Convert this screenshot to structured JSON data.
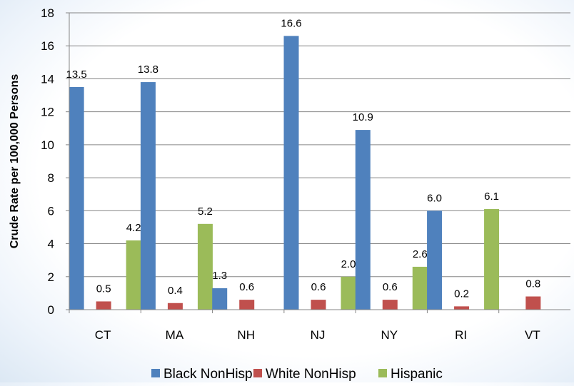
{
  "chart_data": {
    "type": "bar",
    "categories": [
      "CT",
      "MA",
      "NH",
      "NJ",
      "NY",
      "RI",
      "VT"
    ],
    "series": [
      {
        "name": "Black NonHisp",
        "values": [
          13.5,
          13.8,
          1.3,
          16.6,
          10.9,
          6.0,
          null
        ],
        "labels": [
          "13.5",
          "13.8",
          "1.3",
          "16.6",
          "10.9",
          "6.0",
          null
        ],
        "color": "#4f81bd"
      },
      {
        "name": "White NonHisp",
        "values": [
          0.5,
          0.4,
          0.6,
          0.6,
          0.6,
          0.2,
          0.8
        ],
        "labels": [
          "0.5",
          "0.4",
          "0.6",
          "0.6",
          "0.6",
          "0.2",
          "0.8"
        ],
        "color": "#c0504d"
      },
      {
        "name": "Hispanic",
        "values": [
          4.2,
          5.2,
          null,
          2.0,
          2.6,
          6.1,
          null
        ],
        "labels": [
          "4.2",
          "5.2",
          null,
          "2.0",
          "2.6",
          "6.1",
          null
        ],
        "color": "#9bbb59"
      }
    ],
    "ylabel": "Crude Rate per 100,000 Persons",
    "xlabel": "",
    "ylim": [
      0,
      18
    ],
    "yticks": [
      "0",
      "2",
      "4",
      "6",
      "8",
      "10",
      "12",
      "14",
      "16",
      "18"
    ],
    "grid": true,
    "legend_position": "bottom"
  }
}
